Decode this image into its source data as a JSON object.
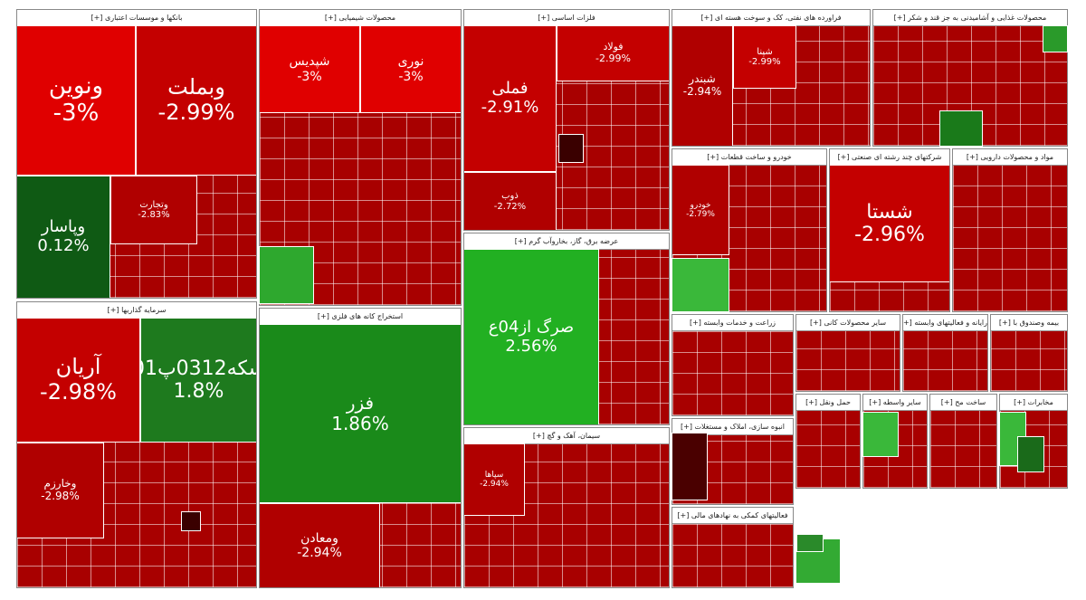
{
  "sectors": [
    {
      "title": "بانکها و موسسات اعتباری [+]",
      "tiles": [
        {
          "name": "ونوین",
          "change": "-3%",
          "color": "#e00000"
        },
        {
          "name": "وبملت",
          "change": "-2.99%",
          "color": "#c40000"
        },
        {
          "name": "وپاسار",
          "change": "0.12%",
          "color": "#0f5a14"
        },
        {
          "name": "وتجارت",
          "change": "-2.83%",
          "color": "#b00000"
        }
      ]
    },
    {
      "title": "سرمایه گذاریها [+]",
      "tiles": [
        {
          "name": "آریان",
          "change": "-2.98%",
          "color": "#c40000"
        },
        {
          "name": "سکه0312پ01",
          "change": "1.8%",
          "color": "#1e7a1e"
        },
        {
          "name": "وخارزم",
          "change": "-2.98%",
          "color": "#b00000"
        }
      ]
    },
    {
      "title": "محصولات شیمیایی [+]",
      "tiles": [
        {
          "name": "شپدیس",
          "change": "-3%",
          "color": "#e00000"
        },
        {
          "name": "نوری",
          "change": "-3%",
          "color": "#e00000"
        }
      ]
    },
    {
      "title": "استخراج کانه های فلزی [+]",
      "tiles": [
        {
          "name": "فزر",
          "change": "1.86%",
          "color": "#1a8a1a"
        },
        {
          "name": "ومعادن",
          "change": "-2.94%",
          "color": "#b00000"
        }
      ]
    },
    {
      "title": "فلزات اساسی [+]",
      "tiles": [
        {
          "name": "فملی",
          "change": "-2.91%",
          "color": "#c40000"
        },
        {
          "name": "فولاد",
          "change": "-2.99%",
          "color": "#c40000"
        },
        {
          "name": "ذوب",
          "change": "-2.72%",
          "color": "#b00000"
        }
      ]
    },
    {
      "title": "عرضه برق، گاز، بخاروآب گرم [+]",
      "tiles": [
        {
          "name": "صرگ از04ع",
          "change": "2.56%",
          "color": "#22b022"
        }
      ]
    },
    {
      "title": "سیمان، آهک و گچ [+]",
      "tiles": [
        {
          "name": "سپاها",
          "change": "-2.94%",
          "color": "#b00000"
        }
      ]
    },
    {
      "title": "فراورده های نفتی، کک و سوخت هسته ای [+]",
      "tiles": [
        {
          "name": "شبندر",
          "change": "-2.94%",
          "color": "#b00000"
        },
        {
          "name": "شپنا",
          "change": "-2.99%",
          "color": "#c40000"
        }
      ]
    },
    {
      "title": "محصولات غذایی و آشامیدنی به جز قند و شکر [+]",
      "tiles": []
    },
    {
      "title": "خودرو و ساخت قطعات [+]",
      "tiles": [
        {
          "name": "خودرو",
          "change": "-2.79%",
          "color": "#b00000"
        }
      ]
    },
    {
      "title": "شرکتهای چند رشته ای صنعتی [+]",
      "tiles": [
        {
          "name": "شستا",
          "change": "-2.96%",
          "color": "#c40000"
        }
      ]
    },
    {
      "title": "مواد و محصولات دارویی [+]",
      "tiles": []
    },
    {
      "title": "زراعت و خدمات وابسته [+]",
      "tiles": []
    },
    {
      "title": "سایر محصولات کانی [+]",
      "tiles": []
    },
    {
      "title": "رایانه و فعالیتهای وابسته [+]",
      "tiles": []
    },
    {
      "title": "بیمه وصندوق با [+]",
      "tiles": []
    },
    {
      "title": "انبوه سازی، املاک و مستغلات [+]",
      "tiles": []
    },
    {
      "title": "فعالیتهای کمکی به نهادهای مالی [+]",
      "tiles": []
    },
    {
      "title": "حمل ونقل [+]",
      "tiles": []
    },
    {
      "title": "سایر واسطه [+]",
      "tiles": []
    },
    {
      "title": "ساخت مح [+]",
      "tiles": []
    },
    {
      "title": "مخابرات [+]",
      "tiles": []
    }
  ]
}
